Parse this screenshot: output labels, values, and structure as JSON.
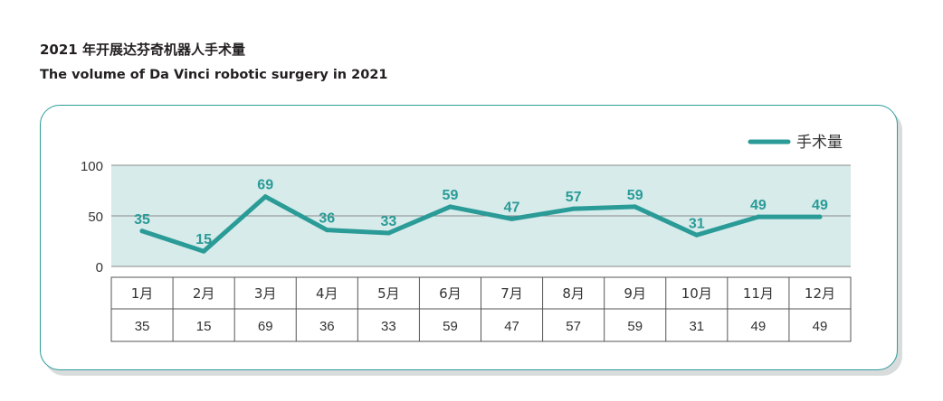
{
  "header": {
    "title_cn": "2021 年开展达芬奇机器人手术量",
    "title_en": "The volume of Da Vinci robotic surgery in 2021"
  },
  "colors": {
    "line": "#2a9b97",
    "plot_band": "#d6ebea",
    "label_text": "#2a9b97",
    "grid": "#8a8a8a"
  },
  "chart_data": {
    "type": "line",
    "categories": [
      "1月",
      "2月",
      "3月",
      "4月",
      "5月",
      "6月",
      "7月",
      "8月",
      "9月",
      "10月",
      "11月",
      "12月"
    ],
    "series": [
      {
        "name": "手术量",
        "values": [
          35,
          15,
          69,
          36,
          33,
          59,
          47,
          57,
          59,
          31,
          49,
          49
        ]
      }
    ],
    "ylim": [
      0,
      100
    ],
    "yticks": [
      0,
      50,
      100
    ],
    "grid": true,
    "legend_position": "top-right",
    "data_labels": true,
    "data_table": true
  }
}
